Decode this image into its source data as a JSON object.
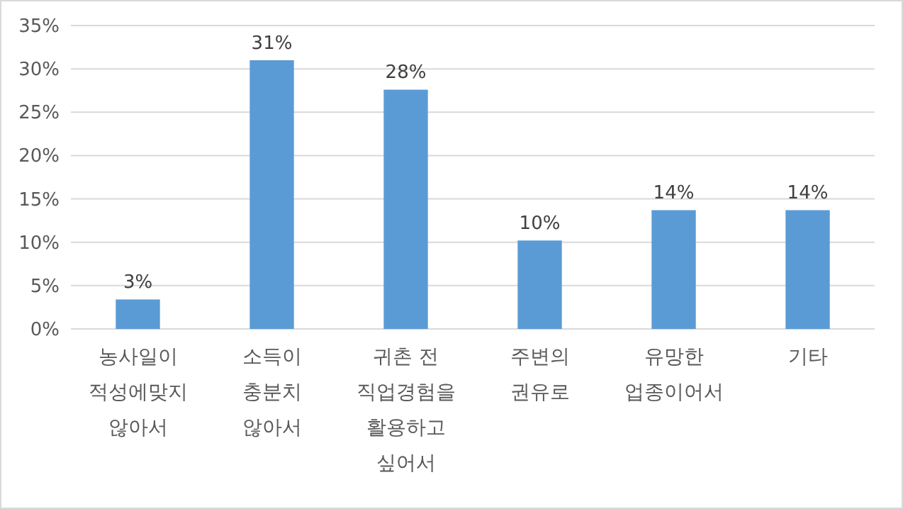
{
  "chart_data": {
    "type": "bar",
    "categories": [
      "농사일이\n적성에맞지\n않아서",
      "소득이\n충분치\n않아서",
      "귀촌 전\n직업경험을\n활용하고\n싶어서",
      "주변의\n권유로",
      "유망한\n업종이어서",
      "기타"
    ],
    "values": [
      3.4,
      31,
      27.6,
      10.2,
      13.7,
      13.7
    ],
    "value_labels": [
      "3%",
      "31%",
      "28%",
      "10%",
      "14%",
      "14%"
    ],
    "color": "#5b9bd5",
    "ylim": [
      0,
      35
    ],
    "yticks": [
      {
        "value": 0,
        "label": "0%"
      },
      {
        "value": 5,
        "label": "5%"
      },
      {
        "value": 10,
        "label": "10%"
      },
      {
        "value": 15,
        "label": "15%"
      },
      {
        "value": 20,
        "label": "20%"
      },
      {
        "value": 25,
        "label": "25%"
      },
      {
        "value": 30,
        "label": "30%"
      },
      {
        "value": 35,
        "label": "35%"
      }
    ],
    "grid": "y"
  }
}
